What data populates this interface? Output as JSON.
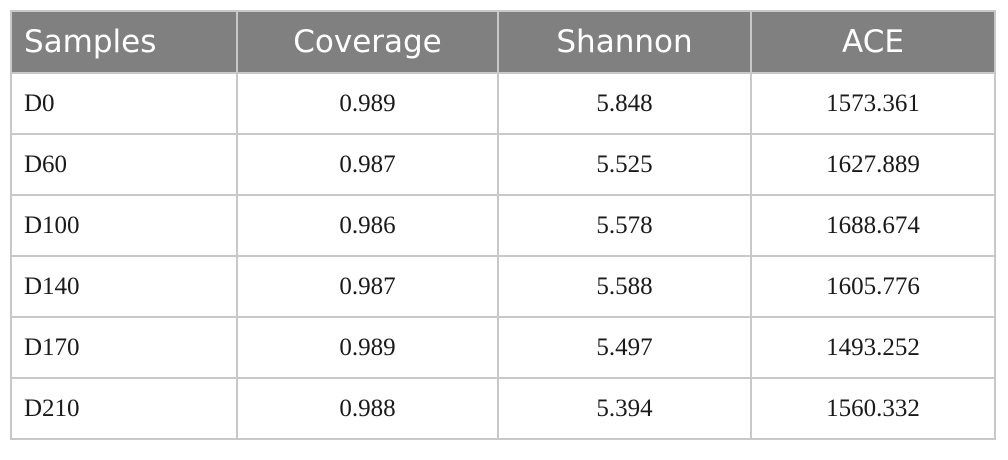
{
  "table": {
    "headers": [
      "Samples",
      "Coverage",
      "Shannon",
      "ACE"
    ],
    "rows": [
      [
        "D0",
        "0.989",
        "5.848",
        "1573.361"
      ],
      [
        "D60",
        "0.987",
        "5.525",
        "1627.889"
      ],
      [
        "D100",
        "0.986",
        "5.578",
        "1688.674"
      ],
      [
        "D140",
        "0.987",
        "5.588",
        "1605.776"
      ],
      [
        "D170",
        "0.989",
        "5.497",
        "1493.252"
      ],
      [
        "D210",
        "0.988",
        "5.394",
        "1560.332"
      ]
    ]
  },
  "colors": {
    "header_bg": "#808080",
    "header_text": "#ffffff",
    "border": "#c8c8c8",
    "cell_text": "#1a1a1a"
  }
}
